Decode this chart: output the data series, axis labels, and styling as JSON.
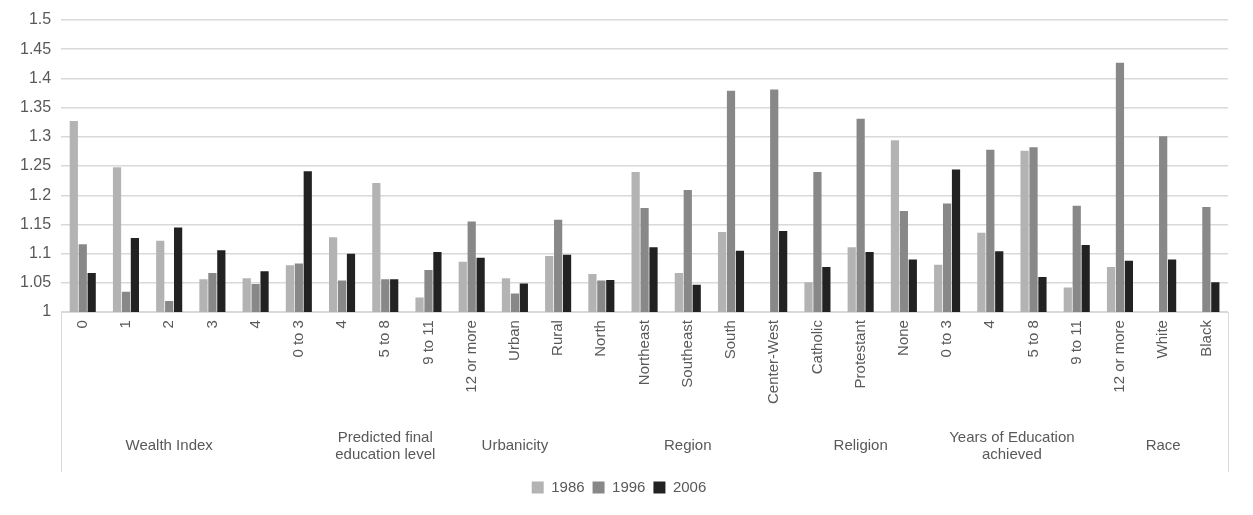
{
  "chart_data": {
    "type": "bar",
    "categories": [
      "0",
      "1",
      "2",
      "3",
      "4",
      "0 to 3",
      "4",
      "5 to 8",
      "9 to 11",
      "12 or more",
      "Urban",
      "Rural",
      "North",
      "Northeast",
      "Southeast",
      "South",
      "Center-West",
      "Catholic",
      "Protestant",
      "None",
      "0 to 3",
      "4",
      "5 to 8",
      "9 to 11",
      "12 or more",
      "White",
      "Black"
    ],
    "series": [
      {
        "name": "1986",
        "color": "#b3b3b3",
        "values": [
          1.327,
          1.248,
          1.122,
          1.056,
          1.058,
          1.08,
          1.128,
          1.221,
          1.025,
          1.086,
          1.058,
          1.096,
          1.065,
          1.24,
          1.067,
          1.137,
          null,
          1.051,
          1.111,
          1.294,
          1.081,
          1.136,
          1.276,
          1.042,
          1.077,
          null,
          null
        ]
      },
      {
        "name": "1996",
        "color": "#888888",
        "values": [
          1.116,
          1.035,
          1.019,
          1.067,
          1.048,
          1.083,
          1.054,
          1.056,
          1.072,
          1.155,
          1.032,
          1.158,
          1.054,
          1.178,
          1.209,
          1.379,
          1.381,
          1.24,
          1.331,
          1.173,
          1.186,
          1.278,
          1.282,
          1.182,
          1.427,
          1.301,
          1.18
        ]
      },
      {
        "name": "2006",
        "color": "#222222",
        "values": [
          1.067,
          1.127,
          1.145,
          1.106,
          1.07,
          1.241,
          1.1,
          1.056,
          1.103,
          1.093,
          1.049,
          1.098,
          1.055,
          1.111,
          1.047,
          1.105,
          1.139,
          1.077,
          1.103,
          1.09,
          1.244,
          1.104,
          1.06,
          1.115,
          1.088,
          1.09,
          1.051
        ]
      }
    ],
    "ylim": [
      1,
      1.5
    ],
    "yticks": [
      1,
      1.05,
      1.1,
      1.15,
      1.2,
      1.25,
      1.3,
      1.35,
      1.4,
      1.45,
      1.5
    ],
    "grid": "y",
    "legend": "bottom",
    "annotations": [
      {
        "text": "Wealth Index",
        "x": "2"
      },
      {
        "text": "Predicted final education level",
        "x": "5 to 8"
      },
      {
        "text": "Urbanicity",
        "x": "Urban"
      },
      {
        "text": "Region",
        "x": "Southeast"
      },
      {
        "text": "Religion",
        "x": "Protestant"
      },
      "Years of Education achieved",
      {
        "text": "Race",
        "x": "White"
      }
    ]
  }
}
